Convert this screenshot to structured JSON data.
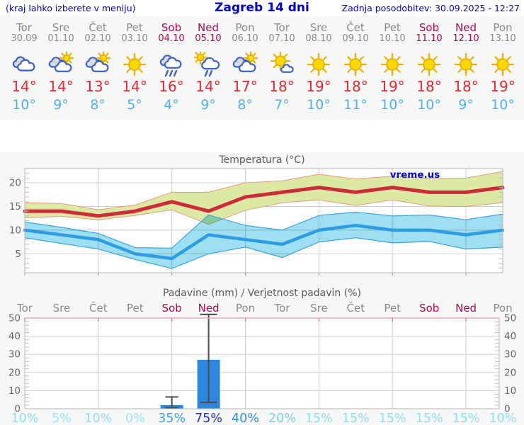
{
  "header": {
    "hint": "(kraj lahko izberete v meniju)",
    "title": "Zagreb 14 dni",
    "updated": "Zadnja posodobitev: 30.09.2025 - 12:27"
  },
  "days": [
    {
      "name": "Tor",
      "date": "30.09",
      "weekend": false,
      "icon": "cloudy",
      "tmax": 14,
      "tmin": 10
    },
    {
      "name": "Sre",
      "date": "01.10",
      "weekend": false,
      "icon": "sun-cloud",
      "tmax": 14,
      "tmin": 9
    },
    {
      "name": "Čet",
      "date": "02.10",
      "weekend": false,
      "icon": "sun-cloud",
      "tmax": 13,
      "tmin": 8
    },
    {
      "name": "Pet",
      "date": "03.10",
      "weekend": false,
      "icon": "sunny",
      "tmax": 14,
      "tmin": 5
    },
    {
      "name": "Sob",
      "date": "04.10",
      "weekend": true,
      "icon": "rain",
      "tmax": 16,
      "tmin": 4
    },
    {
      "name": "Ned",
      "date": "05.10",
      "weekend": true,
      "icon": "sun-rain",
      "tmax": 14,
      "tmin": 9
    },
    {
      "name": "Pon",
      "date": "06.10",
      "weekend": false,
      "icon": "sun-cloud",
      "tmax": 17,
      "tmin": 8
    },
    {
      "name": "Tor",
      "date": "07.10",
      "weekend": false,
      "icon": "sun-small-cloud",
      "tmax": 18,
      "tmin": 7
    },
    {
      "name": "Sre",
      "date": "08.10",
      "weekend": false,
      "icon": "sunny",
      "tmax": 19,
      "tmin": 10
    },
    {
      "name": "Čet",
      "date": "09.10",
      "weekend": false,
      "icon": "sunny",
      "tmax": 18,
      "tmin": 11
    },
    {
      "name": "Pet",
      "date": "10.10",
      "weekend": false,
      "icon": "sunny",
      "tmax": 19,
      "tmin": 10
    },
    {
      "name": "Sob",
      "date": "11.10",
      "weekend": true,
      "icon": "sunny",
      "tmax": 18,
      "tmin": 10
    },
    {
      "name": "Ned",
      "date": "12.10",
      "weekend": true,
      "icon": "sunny",
      "tmax": 18,
      "tmin": 9
    },
    {
      "name": "Pon",
      "date": "13.10",
      "weekend": false,
      "icon": "sunny",
      "tmax": 19,
      "tmin": 10
    }
  ],
  "chart_data": [
    {
      "type": "line",
      "title": "Temperatura (°C)",
      "watermark": "vreme.us",
      "categories": [
        "Tor",
        "Sre",
        "Čet",
        "Pet",
        "Sob",
        "Ned",
        "Pon",
        "Tor",
        "Sre",
        "Čet",
        "Pet",
        "Sob",
        "Ned",
        "Pon"
      ],
      "ylim": [
        1,
        23
      ],
      "yticks": [
        5,
        10,
        15,
        20
      ],
      "grid": true,
      "series": [
        {
          "name": "tmax",
          "values": [
            14,
            14,
            13,
            14,
            16,
            14,
            17,
            18,
            19,
            18,
            19,
            18,
            18,
            19
          ]
        },
        {
          "name": "tmax_upper",
          "values": [
            15.8,
            15.6,
            14.3,
            15.3,
            18,
            18,
            20,
            20.4,
            21.8,
            20.8,
            21.4,
            20.9,
            21,
            22.4
          ]
        },
        {
          "name": "tmax_lower",
          "values": [
            12.6,
            12.9,
            12.2,
            13.1,
            14.3,
            11.2,
            14.2,
            15.8,
            16.4,
            15.2,
            16.4,
            15.1,
            15,
            15.8
          ]
        },
        {
          "name": "tmin",
          "values": [
            10,
            9,
            8,
            5,
            4,
            9,
            8,
            7,
            10,
            11,
            10,
            10,
            9,
            10
          ]
        },
        {
          "name": "tmin_upper",
          "values": [
            11.7,
            10.6,
            9.3,
            6.3,
            6.2,
            13.2,
            11,
            10,
            13.1,
            13.8,
            13,
            13.2,
            12.2,
            13.4
          ]
        },
        {
          "name": "tmin_lower",
          "values": [
            8.4,
            7.2,
            6,
            3.8,
            1.9,
            5,
            6.4,
            4.2,
            7.5,
            8.4,
            7.3,
            7.6,
            6,
            6.4
          ]
        }
      ],
      "colors": {
        "max_line": "#d02a3a",
        "max_fill": "#dbe9a2",
        "max_edge": "#e8987a",
        "min_line": "#2d9ce2",
        "min_fill": "#9edff2",
        "min_edge": "#38a5e0",
        "grid": "#cfcfcf",
        "border": "#b5b5b5",
        "text": "#666666"
      }
    },
    {
      "type": "bar",
      "title": "Padavine (mm) / Verjetnost padavin (%)",
      "categories": [
        "Tor",
        "Sre",
        "Čet",
        "Pet",
        "Sob",
        "Ned",
        "Pon",
        "Tor",
        "Sre",
        "Čet",
        "Pet",
        "Sob",
        "Ned",
        "Pon"
      ],
      "weekend_mask": [
        0,
        0,
        0,
        0,
        1,
        1,
        0,
        0,
        0,
        0,
        0,
        1,
        1,
        0
      ],
      "values": [
        0,
        0,
        0,
        0,
        2,
        27,
        0,
        0,
        0,
        0,
        0,
        0,
        0,
        0
      ],
      "whiskers": {
        "4": [
          0.5,
          6.5
        ],
        "5": [
          3.5,
          52
        ]
      },
      "probabilities": [
        "10%",
        "5%",
        "10%",
        "0%",
        "35%",
        "75%",
        "40%",
        "20%",
        "15%",
        "15%",
        "15%",
        "15%",
        "15%",
        "10%"
      ],
      "prob_colors": [
        "#8ce0f4",
        "#97e6f6",
        "#8ce0f4",
        "#97e6f6",
        "#3fa4e6",
        "#2030c8",
        "#2f93dc",
        "#76d2ee",
        "#8ce0f4",
        "#8ce0f4",
        "#8ce0f4",
        "#8ce0f4",
        "#8ce0f4",
        "#8ce0f4"
      ],
      "ylim": [
        0,
        50
      ],
      "yticks": [
        0,
        10,
        20,
        30,
        40,
        50
      ],
      "grid": true,
      "colors": {
        "bar": "#2d87de",
        "whisker": "#4a4a4a",
        "top_border": "#f2a6b6",
        "top_tick": "#e87090",
        "grid": "#cfcfcf",
        "border": "#b5b5b5",
        "text": "#666666",
        "day_gray": "#8a8a8a",
        "day_weekend": "#b50551"
      }
    }
  ]
}
